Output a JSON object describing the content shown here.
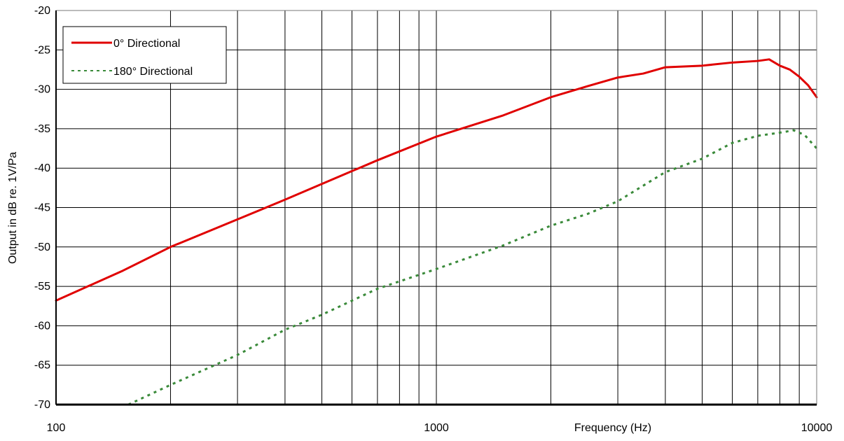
{
  "chart_data": {
    "type": "line",
    "title": "",
    "xlabel": "Frequency (Hz)",
    "ylabel": "Output in dB re. 1V/Pa",
    "x_scale": "log",
    "xlim": [
      100,
      10000
    ],
    "ylim": [
      -70,
      -20
    ],
    "x_tick_labels": [
      "100",
      "1000",
      "10000"
    ],
    "x_ticks": [
      100,
      1000,
      10000
    ],
    "y_ticks": [
      -20,
      -25,
      -30,
      -35,
      -40,
      -45,
      -50,
      -55,
      -60,
      -65,
      -70
    ],
    "y_tick_labels": [
      "-20",
      "-25",
      "-30",
      "-35",
      "-40",
      "-45",
      "-50",
      "-55",
      "-60",
      "-65",
      "-70"
    ],
    "grid": true,
    "legend_position": "top-left",
    "series": [
      {
        "name": "0° Directional",
        "color": "#e00000",
        "style": "solid",
        "x": [
          100,
          150,
          200,
          300,
          400,
          500,
          700,
          1000,
          1500,
          2000,
          2500,
          3000,
          3500,
          4000,
          5000,
          6000,
          7000,
          7500,
          8000,
          8500,
          9000,
          9500,
          10000
        ],
        "y": [
          -56.8,
          -53,
          -50,
          -46.5,
          -44,
          -42,
          -39,
          -36,
          -33.3,
          -31,
          -29.6,
          -28.5,
          -28,
          -27.2,
          -27,
          -26.6,
          -26.4,
          -26.2,
          -27,
          -27.5,
          -28.4,
          -29.5,
          -31
        ]
      },
      {
        "name": "180° Directional",
        "color": "#3a8a3a",
        "style": "dotted",
        "x": [
          155,
          200,
          300,
          400,
          500,
          700,
          1000,
          1500,
          2000,
          2500,
          3000,
          4000,
          5000,
          6000,
          7000,
          8000,
          8700,
          9300,
          10000
        ],
        "y": [
          -70,
          -67.5,
          -63.7,
          -60.5,
          -58.6,
          -55.3,
          -52.8,
          -49.8,
          -47.3,
          -45.8,
          -44.2,
          -40.5,
          -38.8,
          -36.8,
          -35.9,
          -35.5,
          -35.2,
          -35.8,
          -37.5
        ]
      }
    ]
  }
}
